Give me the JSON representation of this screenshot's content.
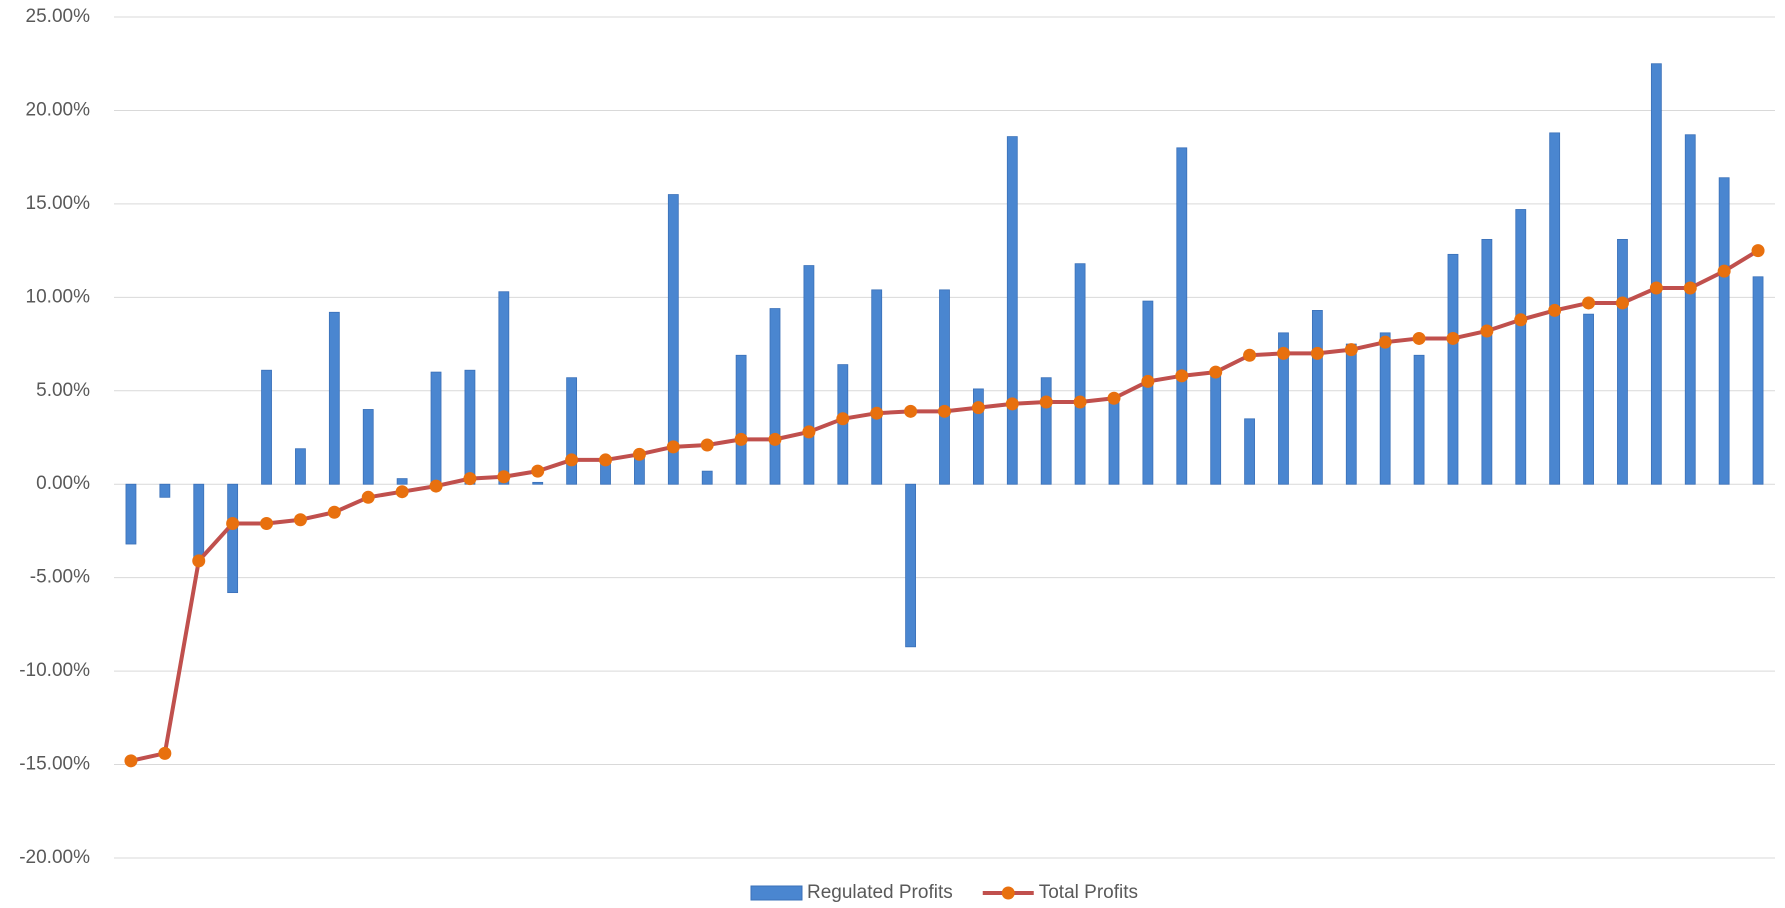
{
  "chart_data": {
    "type": "bar-line",
    "categories": [
      null,
      null,
      null,
      null,
      null,
      null,
      null,
      null,
      null,
      null,
      null,
      null,
      null,
      null,
      null,
      null,
      null,
      null,
      null,
      null,
      null,
      null,
      null,
      null,
      null,
      null,
      null,
      null,
      null,
      null,
      null,
      null,
      null,
      null,
      null,
      null,
      null,
      null,
      null,
      null,
      null,
      null,
      null,
      null,
      null,
      null,
      null,
      null,
      null
    ],
    "series": [
      {
        "name": "Regulated Profits",
        "type": "bar",
        "color": "#4a86d0",
        "values": [
          -3.2,
          -0.7,
          -3.9,
          -5.8,
          6.1,
          1.9,
          9.2,
          4.0,
          0.3,
          6.0,
          6.1,
          10.3,
          0.1,
          5.7,
          1.2,
          1.4,
          15.5,
          0.7,
          6.9,
          9.4,
          11.7,
          6.4,
          10.4,
          -8.7,
          10.4,
          5.1,
          18.6,
          5.7,
          11.8,
          4.5,
          9.8,
          18.0,
          5.8,
          3.5,
          8.1,
          9.3,
          7.5,
          8.1,
          6.9,
          12.3,
          13.1,
          14.7,
          18.8,
          9.1,
          13.1,
          22.5,
          18.7,
          16.4,
          11.1
        ]
      },
      {
        "name": "Total Profits",
        "type": "line",
        "color": "#c0504d",
        "marker_color": "#e8700e",
        "values": [
          -14.8,
          -14.4,
          -4.1,
          -2.1,
          -2.1,
          -1.9,
          -1.5,
          -0.7,
          -0.4,
          -0.1,
          0.3,
          0.4,
          0.7,
          1.3,
          1.3,
          1.6,
          2.0,
          2.1,
          2.4,
          2.4,
          2.8,
          3.5,
          3.8,
          3.9,
          3.9,
          4.1,
          4.3,
          4.4,
          4.4,
          4.6,
          5.5,
          5.8,
          6.0,
          6.9,
          7.0,
          7.0,
          7.2,
          7.6,
          7.8,
          7.8,
          8.2,
          8.8,
          9.3,
          9.7,
          9.7,
          10.5,
          10.5,
          11.4,
          12.5
        ]
      }
    ],
    "ylim": [
      -20,
      25
    ],
    "yticks": [
      {
        "value": -20,
        "label": "-20.00%"
      },
      {
        "value": -15,
        "label": "-15.00%"
      },
      {
        "value": -10,
        "label": "-10.00%"
      },
      {
        "value": -5,
        "label": "-5.00%"
      },
      {
        "value": 0,
        "label": "0.00%"
      },
      {
        "value": 5,
        "label": "5.00%"
      },
      {
        "value": 10,
        "label": "10.00%"
      },
      {
        "value": 15,
        "label": "15.00%"
      },
      {
        "value": 20,
        "label": "20.00%"
      },
      {
        "value": 25,
        "label": "25.00%"
      }
    ],
    "grid": true,
    "legend": "bottom"
  }
}
